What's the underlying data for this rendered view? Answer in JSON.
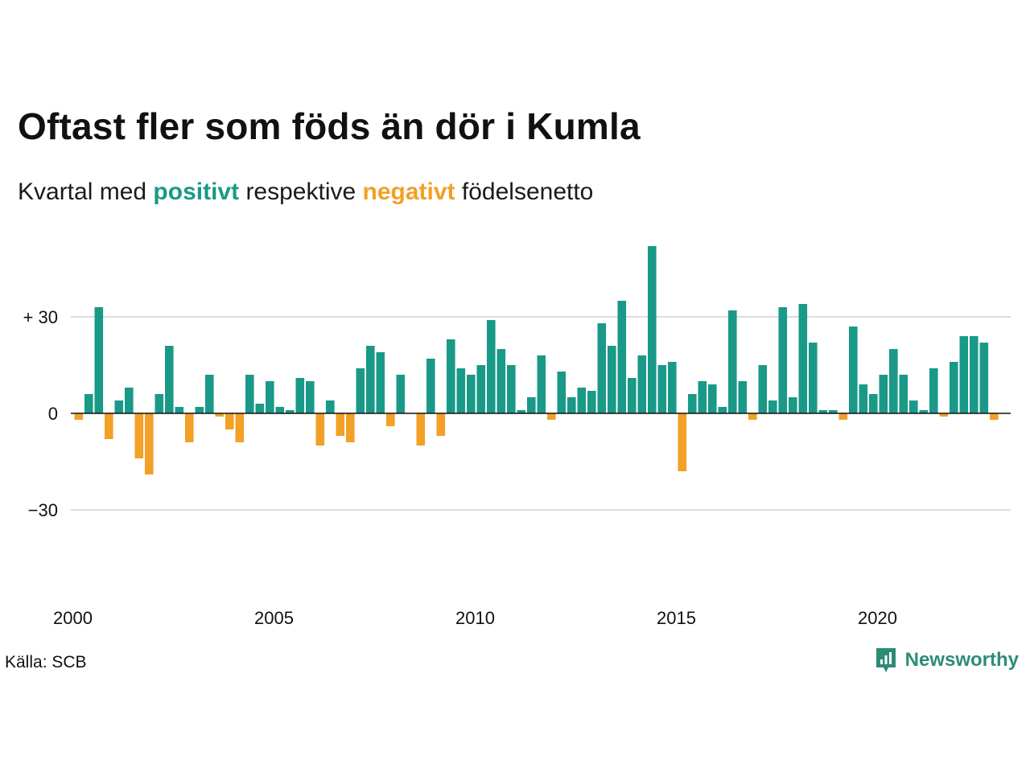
{
  "title": "Oftast fler som föds än dör i Kumla",
  "subtitle": {
    "prefix": "Kvartal med",
    "positive": "positivt",
    "middle": "respektive",
    "negative": "negativt",
    "suffix": "födelsenetto"
  },
  "source": "Källa: SCB",
  "brand": "Newsworthy",
  "colors": {
    "positive": "#1a9988",
    "negative": "#f2a026",
    "grid": "#dddddd",
    "brand": "#2d8c77"
  },
  "chart_data": {
    "type": "bar",
    "x_start_year": 2000,
    "periods_per_year": 4,
    "values": [
      -2,
      6,
      33,
      -8,
      4,
      8,
      -14,
      -19,
      6,
      21,
      2,
      -9,
      2,
      12,
      -1,
      -5,
      -9,
      12,
      3,
      10,
      2,
      1,
      11,
      10,
      -10,
      4,
      -7,
      -9,
      14,
      21,
      19,
      -4,
      12,
      0,
      -10,
      17,
      -7,
      23,
      14,
      12,
      15,
      29,
      20,
      15,
      1,
      5,
      18,
      -2,
      13,
      5,
      8,
      7,
      28,
      21,
      35,
      11,
      18,
      52,
      15,
      16,
      -18,
      6,
      10,
      9,
      2,
      32,
      10,
      -2,
      15,
      4,
      33,
      5,
      34,
      22,
      1,
      1,
      -2,
      27,
      9,
      6,
      12,
      20,
      12,
      4,
      1,
      14,
      -1,
      16,
      24,
      24,
      22,
      -2
    ],
    "x_ticks": [
      "2000",
      "2005",
      "2010",
      "2015",
      "2020"
    ],
    "y_ticks": [
      {
        "value": 30,
        "label": "+ 30"
      },
      {
        "value": 0,
        "label": "0"
      },
      {
        "value": -30,
        "label": "−30"
      }
    ],
    "ylim": [
      -55,
      53
    ],
    "grid": true,
    "xlabel": "",
    "ylabel": ""
  }
}
